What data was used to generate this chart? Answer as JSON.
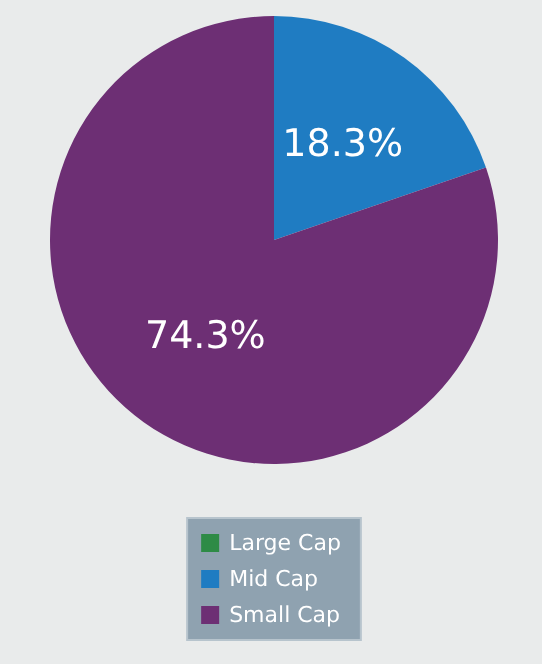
{
  "chart_data": {
    "type": "pie",
    "categories": [
      "Large Cap",
      "Mid Cap",
      "Small Cap"
    ],
    "values": [
      0,
      18.3,
      74.3
    ],
    "colors": [
      "#2e8b46",
      "#1f7cc2",
      "#6d2f74"
    ],
    "value_labels": [
      null,
      "18.3%",
      "74.3%"
    ],
    "legend": "bottom"
  }
}
